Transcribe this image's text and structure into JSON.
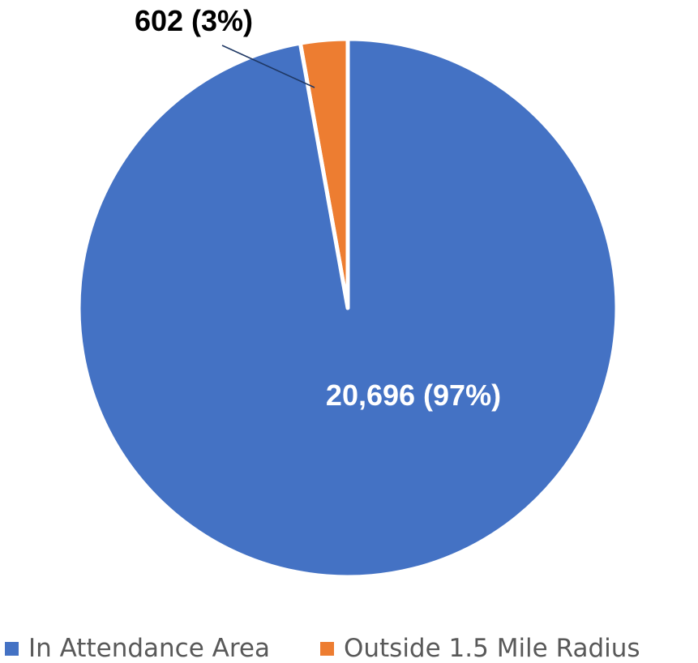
{
  "chart_data": {
    "type": "pie",
    "title": "",
    "categories": [
      "In Attendance Area",
      "Outside 1.5 Mile Radius"
    ],
    "values": [
      20696,
      602
    ],
    "percentages": [
      97,
      3
    ],
    "data_labels": [
      "20,696 (97%)",
      "602 (3%)"
    ],
    "colors": [
      "#4472C4",
      "#ED7D31"
    ],
    "legend_position": "bottom",
    "start_angle": "12 o'clock",
    "direction": "counterclockwise"
  }
}
